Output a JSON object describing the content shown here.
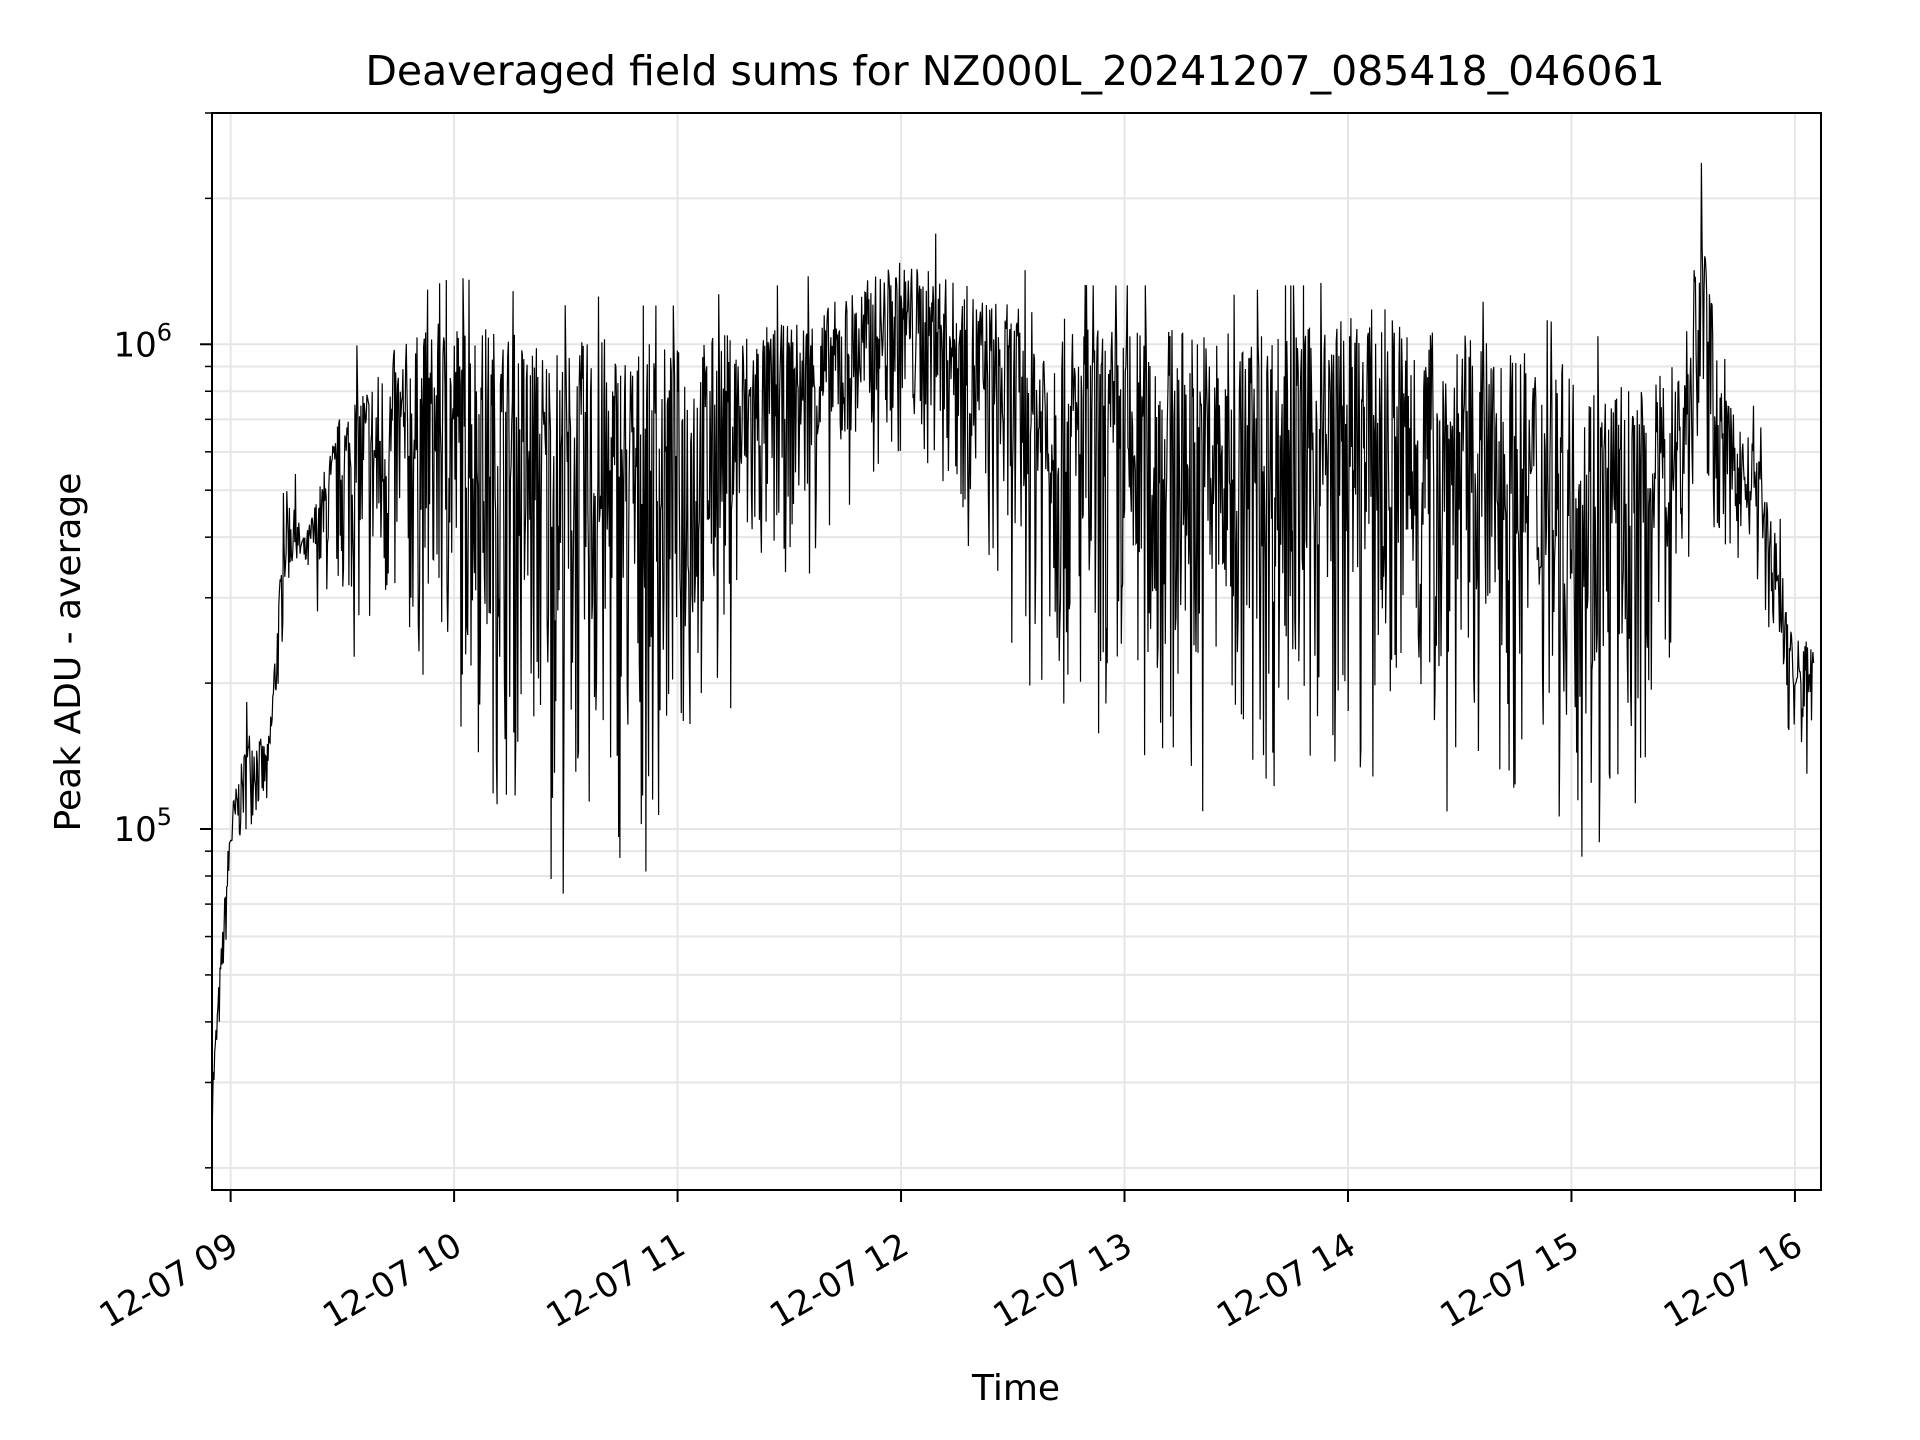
{
  "chart_data": {
    "type": "line",
    "title": "Deaveraged field sums for NZ000L_20241207_085418_046061",
    "xlabel": "Time",
    "ylabel": "Peak ADU - average",
    "yscale": "log",
    "grid": true,
    "legend": "none",
    "line_color": "#000000",
    "grid_color": "#e6e6e6",
    "xlim": [
      "2024-12-07 08:55",
      "2024-12-07 16:07"
    ],
    "ylim": [
      18000,
      3000000
    ],
    "x_ticks": [
      {
        "value": "2024-12-07 09:00",
        "label": "12-07 09"
      },
      {
        "value": "2024-12-07 10:00",
        "label": "12-07 10"
      },
      {
        "value": "2024-12-07 11:00",
        "label": "12-07 11"
      },
      {
        "value": "2024-12-07 12:00",
        "label": "12-07 12"
      },
      {
        "value": "2024-12-07 13:00",
        "label": "12-07 13"
      },
      {
        "value": "2024-12-07 14:00",
        "label": "12-07 14"
      },
      {
        "value": "2024-12-07 15:00",
        "label": "12-07 15"
      },
      {
        "value": "2024-12-07 16:00",
        "label": "12-07 16"
      }
    ],
    "y_ticks": [
      {
        "value": 100000,
        "base": "10",
        "exp": "5"
      },
      {
        "value": 1000000,
        "base": "10",
        "exp": "6"
      }
    ],
    "series": [
      {
        "x": [
          "2024-12-07 08:55",
          "2024-12-07 09:00",
          "2024-12-07 09:05",
          "2024-12-07 09:10",
          "2024-12-07 09:15",
          "2024-12-07 09:20",
          "2024-12-07 09:25",
          "2024-12-07 09:30",
          "2024-12-07 09:35",
          "2024-12-07 09:40",
          "2024-12-07 09:45",
          "2024-12-07 09:50",
          "2024-12-07 09:55",
          "2024-12-07 10:00",
          "2024-12-07 10:10",
          "2024-12-07 10:20",
          "2024-12-07 10:30",
          "2024-12-07 10:40",
          "2024-12-07 10:50",
          "2024-12-07 11:00",
          "2024-12-07 11:10",
          "2024-12-07 11:20",
          "2024-12-07 11:30",
          "2024-12-07 11:40",
          "2024-12-07 11:50",
          "2024-12-07 12:00",
          "2024-12-07 12:10",
          "2024-12-07 12:20",
          "2024-12-07 12:30",
          "2024-12-07 12:40",
          "2024-12-07 12:50",
          "2024-12-07 13:00",
          "2024-12-07 13:10",
          "2024-12-07 13:20",
          "2024-12-07 13:30",
          "2024-12-07 13:40",
          "2024-12-07 13:50",
          "2024-12-07 14:00",
          "2024-12-07 14:10",
          "2024-12-07 14:20",
          "2024-12-07 14:30",
          "2024-12-07 14:40",
          "2024-12-07 14:50",
          "2024-12-07 15:00",
          "2024-12-07 15:10",
          "2024-12-07 15:20",
          "2024-12-07 15:30",
          "2024-12-07 15:35",
          "2024-12-07 15:40",
          "2024-12-07 15:45",
          "2024-12-07 15:50",
          "2024-12-07 15:55",
          "2024-12-07 16:00",
          "2024-12-07 16:05"
        ],
        "high": [
          30000,
          110000,
          160000,
          150000,
          500000,
          400000,
          550000,
          750000,
          850000,
          900000,
          1000000,
          1050000,
          1100000,
          1150000,
          1100000,
          1050000,
          1000000,
          1050000,
          1000000,
          1000000,
          1050000,
          1100000,
          1100000,
          1200000,
          1350000,
          1500000,
          1400000,
          1300000,
          1200000,
          1150000,
          1100000,
          1100000,
          1100000,
          1100000,
          1050000,
          1100000,
          1100000,
          1150000,
          1200000,
          1100000,
          1050000,
          1000000,
          950000,
          900000,
          850000,
          800000,
          1000000,
          2000000,
          800000,
          700000,
          600000,
          400000,
          250000,
          250000
        ],
        "low": [
          22000,
          70000,
          100000,
          90000,
          280000,
          300000,
          260000,
          230000,
          200000,
          180000,
          170000,
          160000,
          150000,
          140000,
          100000,
          80000,
          70000,
          60000,
          60000,
          80000,
          150000,
          200000,
          300000,
          350000,
          450000,
          500000,
          450000,
          300000,
          200000,
          150000,
          100000,
          100000,
          90000,
          90000,
          80000,
          90000,
          100000,
          100000,
          90000,
          90000,
          100000,
          100000,
          100000,
          90000,
          60000,
          100000,
          200000,
          350000,
          350000,
          300000,
          300000,
          200000,
          100000,
          140000
        ]
      }
    ]
  }
}
